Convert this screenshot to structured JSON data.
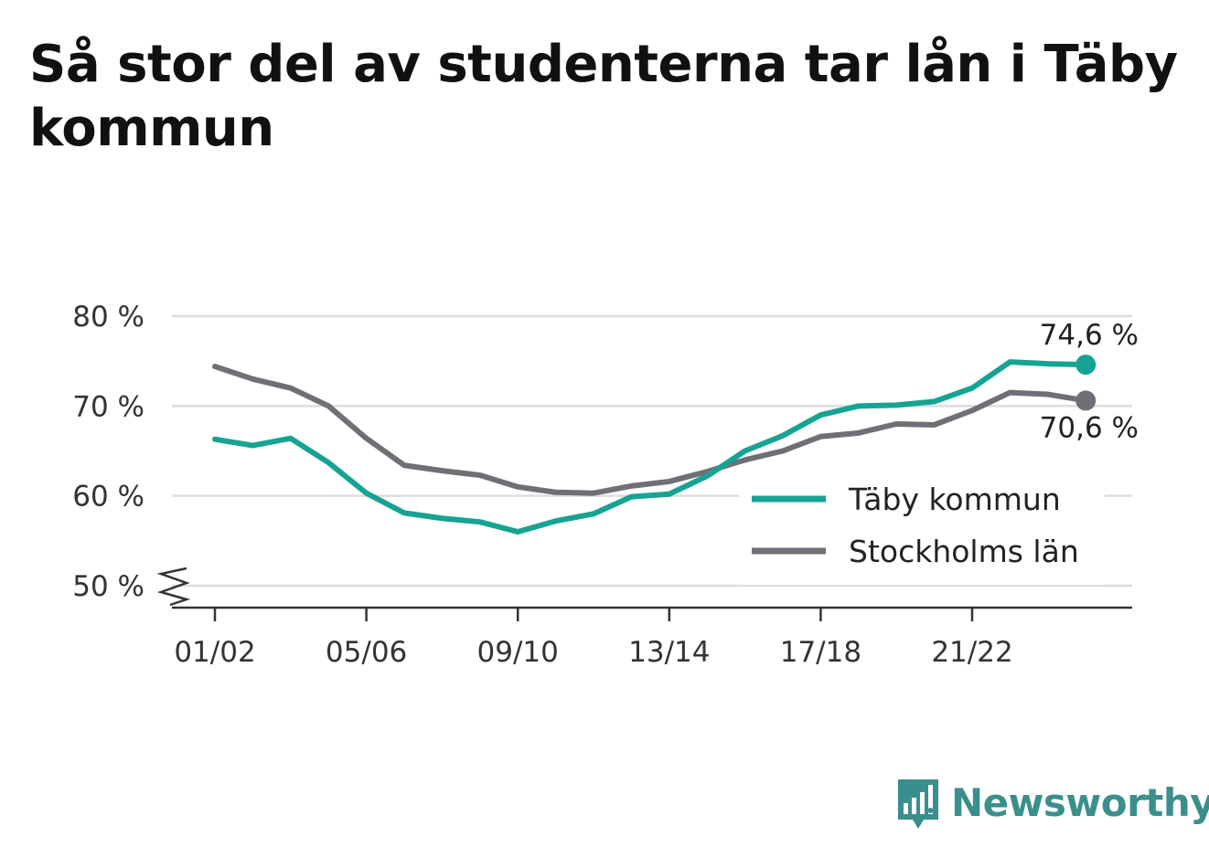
{
  "title": "Så stor del av studenterna tar lån i Täby kommun",
  "colors": {
    "taby": "#16a393",
    "stockholm": "#6f6f76",
    "grid": "#dddddd",
    "axis": "#333333",
    "brand": "#3a8f8c"
  },
  "brand": {
    "name": "Newsworthy",
    "icon": "newsworthy-logo-icon"
  },
  "chart_data": {
    "type": "line",
    "title": "Så stor del av studenterna tar lån i Täby kommun",
    "xlabel": "",
    "ylabel": "",
    "ylim": [
      50,
      80
    ],
    "y_axis_break": true,
    "y_ticks": [
      50,
      60,
      70,
      80
    ],
    "y_tick_labels": [
      "50 %",
      "60 %",
      "70 %",
      "80 %"
    ],
    "x_ticks": [
      "01/02",
      "05/06",
      "09/10",
      "13/14",
      "17/18",
      "21/22"
    ],
    "grid": "horizontal",
    "legend_position": "bottom-right",
    "categories": [
      "01/02",
      "02/03",
      "03/04",
      "04/05",
      "05/06",
      "06/07",
      "07/08",
      "08/09",
      "09/10",
      "10/11",
      "11/12",
      "12/13",
      "13/14",
      "14/15",
      "15/16",
      "16/17",
      "17/18",
      "18/19",
      "19/20",
      "20/21",
      "21/22",
      "22/23",
      "23/24",
      "24/25"
    ],
    "series": [
      {
        "name": "Täby kommun",
        "color_key": "taby",
        "end_label": "74,6 %",
        "values": [
          66.3,
          65.6,
          66.4,
          63.7,
          60.3,
          58.1,
          57.5,
          57.1,
          56.0,
          57.2,
          58.0,
          59.9,
          60.2,
          62.2,
          65.0,
          66.7,
          69.0,
          70.0,
          70.1,
          70.5,
          72.0,
          74.9,
          74.7,
          74.6
        ]
      },
      {
        "name": "Stockholms län",
        "color_key": "stockholm",
        "end_label": "70,6 %",
        "values": [
          74.4,
          73.0,
          72.0,
          70.0,
          66.4,
          63.4,
          62.8,
          62.3,
          61.0,
          60.4,
          60.3,
          61.1,
          61.6,
          62.7,
          64.0,
          65.0,
          66.6,
          67.0,
          68.0,
          67.9,
          69.5,
          71.5,
          71.3,
          70.6
        ]
      }
    ]
  }
}
